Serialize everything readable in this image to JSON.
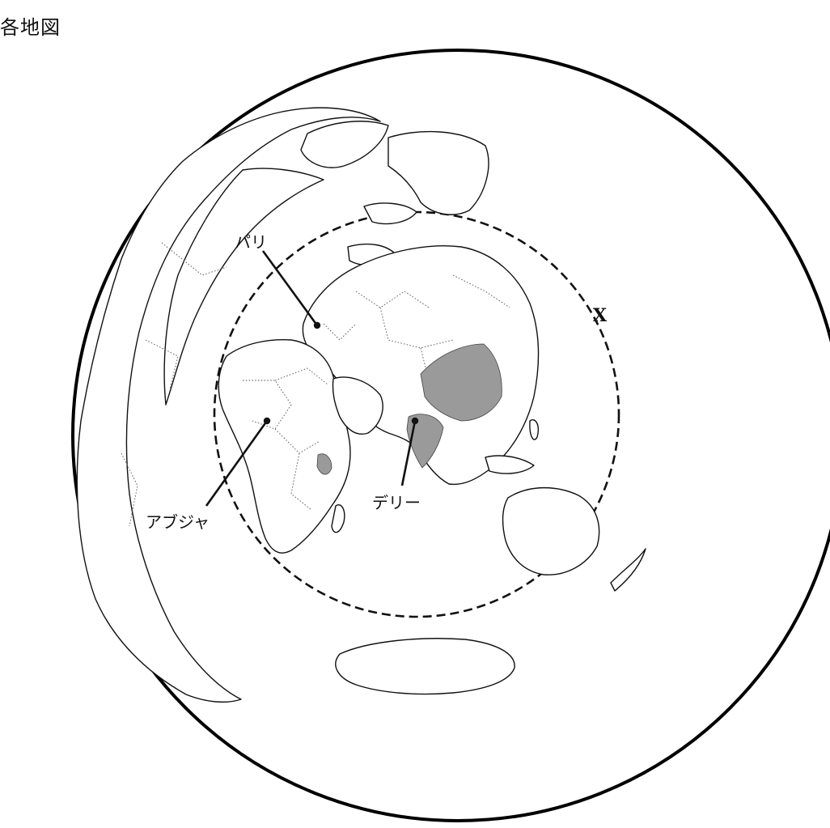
{
  "title": "各地図",
  "labels": {
    "paris": "パリ",
    "abuja": "アブジャ",
    "delhi": "デリー",
    "circle_x": "X"
  }
}
